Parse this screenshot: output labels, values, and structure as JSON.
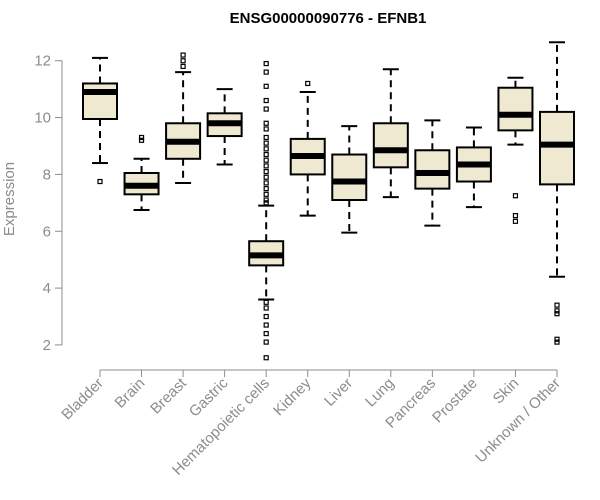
{
  "chart_data": {
    "type": "boxplot",
    "title": "ENSG00000090776 - EFNB1",
    "ylabel": "Expression",
    "xlabel": "",
    "ylim": [
      1.4,
      12.8
    ],
    "yticks": [
      2,
      4,
      6,
      8,
      10,
      12
    ],
    "grid": false,
    "box_fill": "#efe9d2",
    "median_color": "#000000",
    "categories": [
      "Bladder",
      "Brain",
      "Breast",
      "Gastric",
      "Hematopoietic cells",
      "Kidney",
      "Liver",
      "Lung",
      "Pancreas",
      "Prostate",
      "Skin",
      "Unknown / Other"
    ],
    "boxes": [
      {
        "label": "Bladder",
        "whisker_low": 8.4,
        "q1": 9.95,
        "median": 10.9,
        "q3": 11.2,
        "whisker_high": 12.1,
        "outliers": [
          7.75
        ]
      },
      {
        "label": "Brain",
        "whisker_low": 6.75,
        "q1": 7.3,
        "median": 7.6,
        "q3": 8.05,
        "whisker_high": 8.55,
        "outliers": [
          9.2,
          9.3
        ]
      },
      {
        "label": "Breast",
        "whisker_low": 7.7,
        "q1": 8.55,
        "median": 9.15,
        "q3": 9.8,
        "whisker_high": 11.6,
        "outliers": [
          11.8,
          12.0,
          12.2
        ]
      },
      {
        "label": "Gastric",
        "whisker_low": 8.35,
        "q1": 9.35,
        "median": 9.8,
        "q3": 10.15,
        "whisker_high": 11.0,
        "outliers": []
      },
      {
        "label": "Hematopoietic cells",
        "whisker_low": 3.6,
        "q1": 4.8,
        "median": 5.15,
        "q3": 5.65,
        "whisker_high": 6.9,
        "outliers": [
          11.9,
          11.6,
          11.1,
          10.6,
          10.3,
          9.8,
          9.6,
          9.3,
          9.1,
          8.9,
          8.7,
          8.5,
          8.3,
          8.1,
          7.9,
          7.7,
          7.5,
          7.3,
          7.1,
          7.0,
          3.5,
          3.3,
          3.0,
          2.7,
          2.4,
          2.1,
          1.55
        ]
      },
      {
        "label": "Kidney",
        "whisker_low": 6.55,
        "q1": 8.0,
        "median": 8.65,
        "q3": 9.25,
        "whisker_high": 10.9,
        "outliers": [
          11.2
        ]
      },
      {
        "label": "Liver",
        "whisker_low": 5.95,
        "q1": 7.1,
        "median": 7.75,
        "q3": 8.7,
        "whisker_high": 9.7,
        "outliers": []
      },
      {
        "label": "Lung",
        "whisker_low": 7.2,
        "q1": 8.25,
        "median": 8.85,
        "q3": 9.8,
        "whisker_high": 11.7,
        "outliers": []
      },
      {
        "label": "Pancreas",
        "whisker_low": 6.2,
        "q1": 7.5,
        "median": 8.05,
        "q3": 8.85,
        "whisker_high": 9.9,
        "outliers": []
      },
      {
        "label": "Prostate",
        "whisker_low": 6.85,
        "q1": 7.75,
        "median": 8.35,
        "q3": 8.95,
        "whisker_high": 9.65,
        "outliers": []
      },
      {
        "label": "Skin",
        "whisker_low": 9.05,
        "q1": 9.55,
        "median": 10.1,
        "q3": 11.05,
        "whisker_high": 11.4,
        "outliers": [
          7.25,
          6.55,
          6.35
        ]
      },
      {
        "label": "Unknown / Other",
        "whisker_low": 4.4,
        "q1": 7.65,
        "median": 9.05,
        "q3": 10.2,
        "whisker_high": 12.65,
        "outliers": [
          3.4,
          3.2,
          3.1,
          2.2,
          2.1
        ]
      }
    ]
  }
}
